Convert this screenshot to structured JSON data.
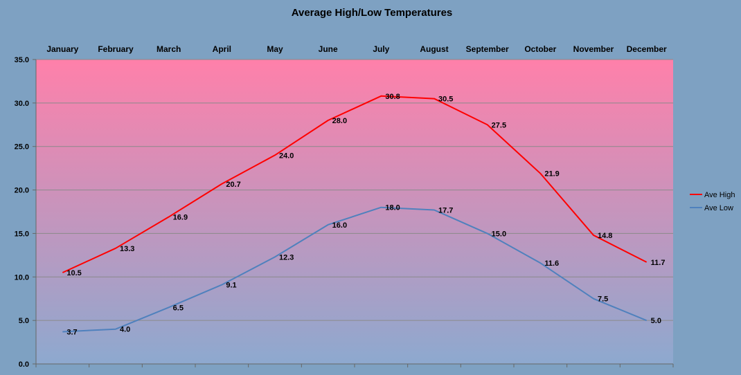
{
  "chart_data": {
    "type": "line",
    "title": "Average High/Low Temperatures",
    "categories": [
      "January",
      "February",
      "March",
      "April",
      "May",
      "June",
      "July",
      "August",
      "September",
      "October",
      "November",
      "December"
    ],
    "series": [
      {
        "name": "Ave High",
        "color": "#ff0000",
        "values": [
          10.5,
          13.3,
          16.9,
          20.7,
          24.0,
          28.0,
          30.8,
          30.5,
          27.5,
          21.9,
          14.8,
          11.7
        ]
      },
      {
        "name": "Ave Low",
        "color": "#4f81bd",
        "values": [
          3.7,
          4.0,
          6.5,
          9.1,
          12.3,
          16.0,
          18.0,
          17.7,
          15.0,
          11.6,
          7.5,
          5.0
        ]
      }
    ],
    "ylim": [
      0,
      35
    ],
    "y_ticks": [
      "0.0",
      "5.0",
      "10.0",
      "15.0",
      "20.0",
      "25.0",
      "30.0",
      "35.0"
    ],
    "grid": true,
    "legend_position": "right",
    "colors": {
      "background": "#7ea1c2",
      "plot_top": "#ff80aa",
      "plot_bottom": "#8da9cf"
    }
  }
}
